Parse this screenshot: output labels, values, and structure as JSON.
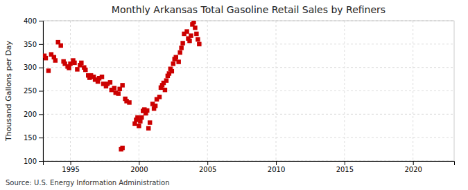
{
  "chart_data": {
    "type": "scatter",
    "title": "Monthly Arkansas Total Gasoline Retail Sales by Refiners",
    "y_label": "Thousand Gallons per Day",
    "annotations": [
      "Source: U.S. Energy Information Administration"
    ],
    "color": "#cc0000",
    "marker": "square",
    "grid": true,
    "xlim": [
      1993.0,
      2023.0
    ],
    "ylim": [
      100,
      400
    ],
    "xticks": [
      1995,
      2000,
      2005,
      2010,
      2015,
      2020
    ],
    "yticks": [
      100,
      150,
      200,
      250,
      300,
      350,
      400
    ],
    "x": [
      1993.1,
      1993.2,
      1993.4,
      1993.6,
      1993.8,
      1993.9,
      1994.1,
      1994.3,
      1994.5,
      1994.6,
      1994.8,
      1994.9,
      1995.0,
      1995.2,
      1995.3,
      1995.5,
      1995.7,
      1995.8,
      1996.0,
      1996.1,
      1996.3,
      1996.4,
      1996.5,
      1996.7,
      1996.8,
      1997.0,
      1997.1,
      1997.3,
      1997.4,
      1997.6,
      1997.7,
      1997.9,
      1998.0,
      1998.2,
      1998.3,
      1998.5,
      1998.6,
      1998.8,
      1999.0,
      1999.1,
      1999.3,
      1998.7,
      1998.8,
      1999.7,
      1999.8,
      1999.9,
      2000.0,
      2000.1,
      2000.2,
      2000.3,
      2000.4,
      2000.5,
      2000.6,
      2000.7,
      2000.8,
      2001.0,
      2001.1,
      2001.2,
      2001.3,
      2001.5,
      2001.6,
      2001.7,
      2001.8,
      2001.9,
      2002.0,
      2002.1,
      2002.2,
      2002.3,
      2002.4,
      2002.5,
      2002.6,
      2002.7,
      2002.9,
      2003.0,
      2003.1,
      2003.2,
      2003.3,
      2003.5,
      2003.6,
      2003.7,
      2003.8,
      2003.9,
      2004.0,
      2004.1,
      2004.2,
      2004.3,
      2004.4
    ],
    "values": [
      325,
      320,
      293,
      328,
      322,
      315,
      354,
      347,
      313,
      308,
      302,
      299,
      308,
      315,
      310,
      296,
      305,
      310,
      300,
      295,
      283,
      278,
      283,
      280,
      274,
      270,
      277,
      280,
      265,
      260,
      265,
      268,
      252,
      256,
      246,
      244,
      254,
      262,
      233,
      228,
      225,
      125,
      128,
      180,
      188,
      193,
      175,
      185,
      193,
      207,
      210,
      202,
      208,
      170,
      182,
      222,
      212,
      218,
      232,
      237,
      257,
      262,
      267,
      252,
      272,
      282,
      287,
      297,
      292,
      308,
      318,
      322,
      312,
      332,
      342,
      352,
      372,
      377,
      362,
      357,
      368,
      392,
      397,
      385,
      372,
      360,
      350
    ]
  }
}
